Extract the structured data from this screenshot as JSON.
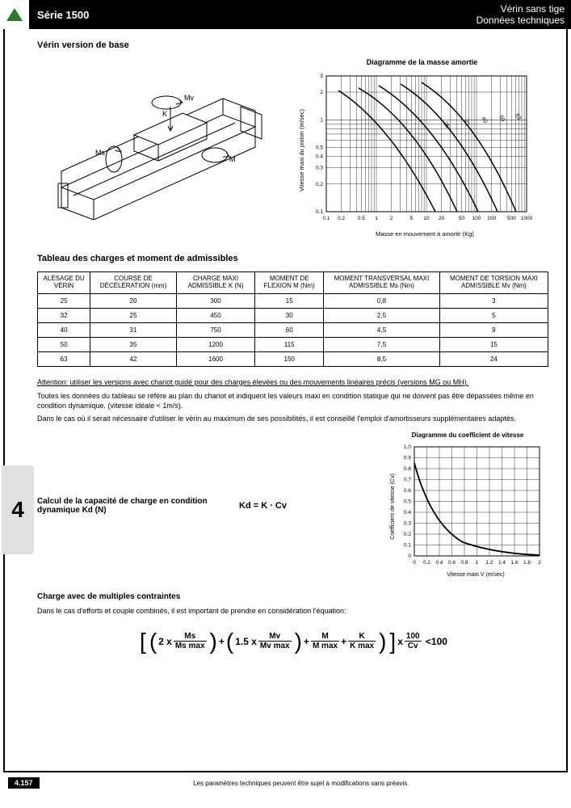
{
  "header": {
    "series": "Série 1500",
    "title1": "Vérin sans tige",
    "title2": "Données techniques"
  },
  "section_title": "Vérin version de base",
  "chart1": {
    "title": "Diagramme de la masse amortie",
    "ylabel": "Vitesse maxi du piston (m/sec)",
    "xlabel": "Masse en mouvement à amortir (Kg)",
    "y_ticks": [
      "0.1",
      "0.2",
      "0.3",
      "0.4",
      "0.5",
      "1",
      "2",
      "3"
    ],
    "x_ticks": [
      "0.1",
      "0.2",
      "0.5",
      "1",
      "2",
      "5",
      "10",
      "20",
      "50",
      "100",
      "200",
      "500",
      "1000"
    ],
    "lines": [
      "25",
      "32",
      "40",
      "50",
      "63"
    ]
  },
  "table": {
    "title": "Tableau des charges et moment de admissibles",
    "headers": [
      "ALÉSAGE DU VÉRIN",
      "COURSE DE DÉCÉLÉRATION (mm)",
      "CHARGE MAXI ADMISSIBLE K (N)",
      "MOMENT DE FLEXION M (Nm)",
      "MOMENT TRANSVERSAL MAXI ADMISSIBLE Ms (Nm)",
      "MOMENT DE TORSION MAXI ADMISSIBLE Mv (Nm)"
    ],
    "rows": [
      [
        "25",
        "20",
        "300",
        "15",
        "0,8",
        "3"
      ],
      [
        "32",
        "25",
        "450",
        "30",
        "2,5",
        "5"
      ],
      [
        "40",
        "31",
        "750",
        "60",
        "4,5",
        "9"
      ],
      [
        "50",
        "35",
        "1200",
        "115",
        "7,5",
        "15"
      ],
      [
        "63",
        "42",
        "1600",
        "150",
        "8,5",
        "24"
      ]
    ]
  },
  "notes": {
    "attention": "Attention: utiliser les versions avec chariot guidé pour des charges élevées ou des mouvements linéaires précis (versions MG ou MH).",
    "p1": "Toutes les données du tableau se réfère au plan du chariot et indiquent les valeurs maxi en condition statique qui ne doivent pas être dépassées même en condition dynamique. (vitesse idéale < 1m/s).",
    "p2": "Dans le cas où il serait nécessaire d'utiliser le vérin au maximum de ses possibilités, il est conseillé l'emploi d'amortisseurs supplémentaires adaptés."
  },
  "calc": {
    "label": "Calcul de la capacité de charge en condition dynamique Kd (N)",
    "formula": "Kd = K · Cv"
  },
  "chart2": {
    "title": "Diagramme du coefficient de vitesse",
    "ylabel": "Coefficient de vitesse (Cv)",
    "xlabel": "Vitesse maxi V (m/sec)",
    "y_ticks": [
      "0",
      "0.1",
      "0.2",
      "0.3",
      "0.4",
      "0.5",
      "0.6",
      "0.7",
      "0.8",
      "0.9",
      "1.0"
    ],
    "x_ticks": [
      "0",
      "0.2",
      "0.4",
      "0.6",
      "0.8",
      "1",
      "1.2",
      "1.4",
      "1.6",
      "1.8",
      "2"
    ]
  },
  "multi": {
    "heading": "Charge avec de multiples contraintes",
    "text": "Dans le cas d'efforts et couple combinés, il est important de prendre en considération l'équation:"
  },
  "equation": {
    "t2x": "2 x",
    "ms_n": "Ms",
    "ms_d": "Ms max",
    "t15x": "1.5 x",
    "mv_n": "Mv",
    "mv_d": "Mv max",
    "m_n": "M",
    "m_d": "M max",
    "k_n": "K",
    "k_d": "K max",
    "x": "x",
    "c_n": "100",
    "c_d": "Cv",
    "le": "<100"
  },
  "footer": {
    "page": "4.157",
    "text": "Les paramètres techniques peuvent être sujet à modifications sans préavis."
  }
}
